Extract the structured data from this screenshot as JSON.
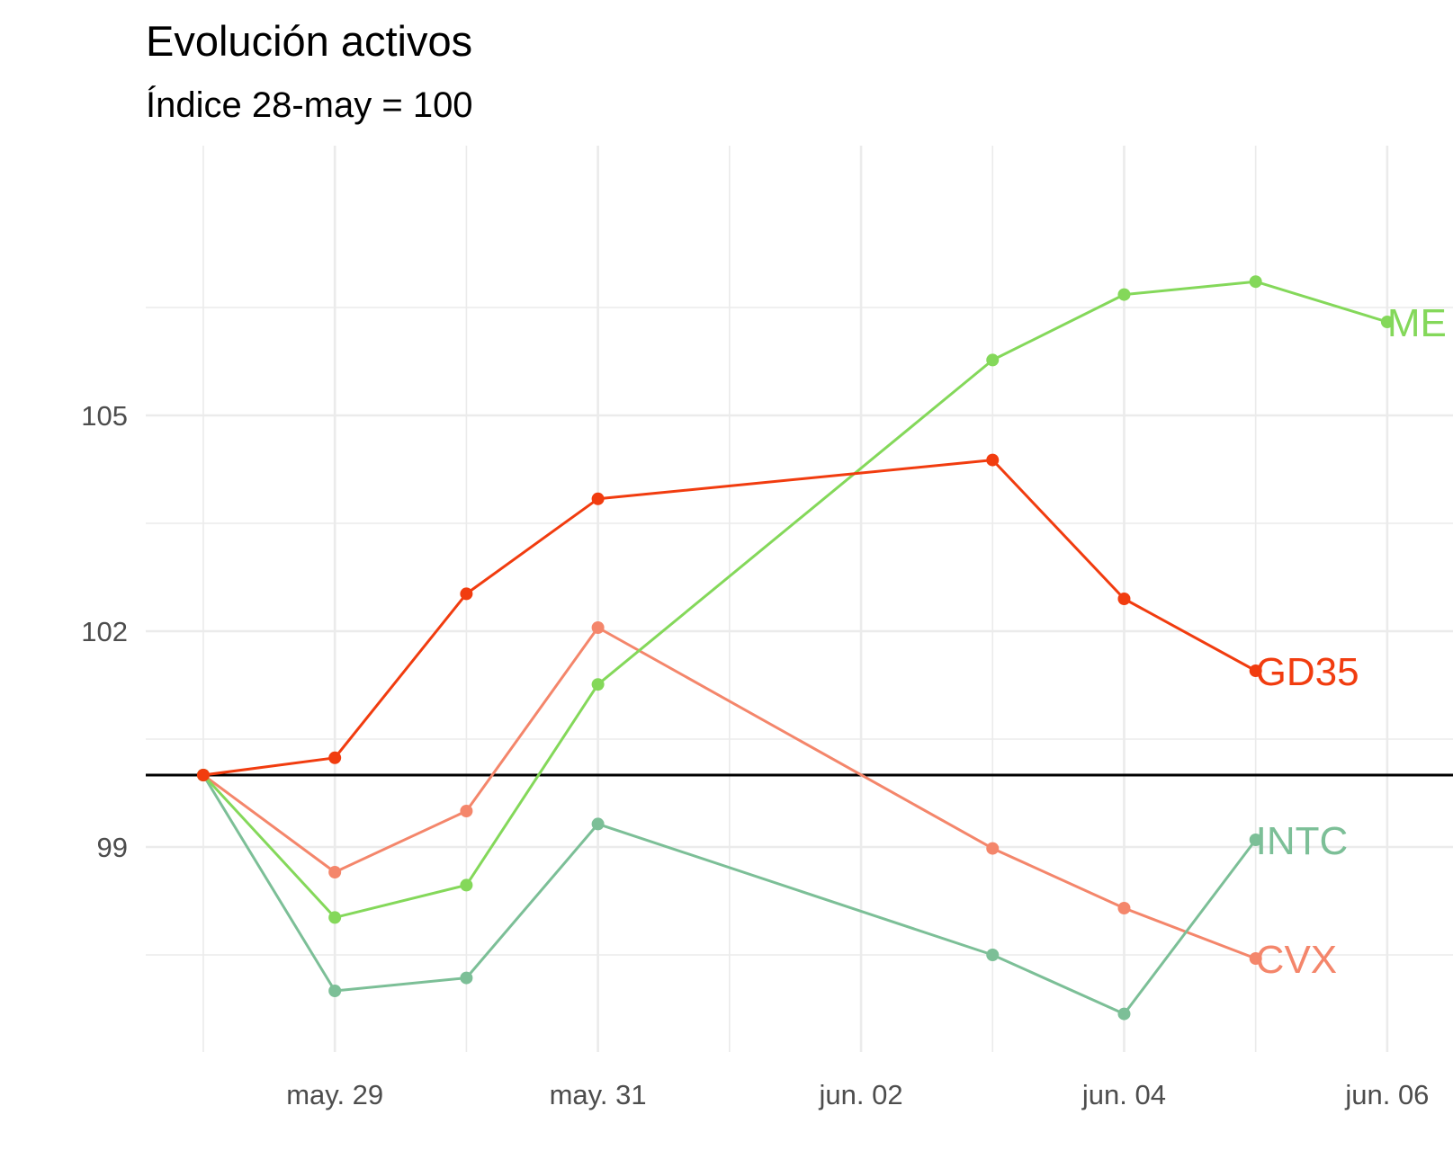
{
  "chart_data": {
    "type": "line",
    "title": "Evolución activos",
    "subtitle": "Índice 28-may = 100",
    "xlabel": "",
    "ylabel": "",
    "x_type": "date",
    "xlim": [
      "2021-05-27T13:30:00",
      "2021-06-06T12:00:00"
    ],
    "ylim": [
      96.15,
      108.75
    ],
    "x_ticks": [
      {
        "date": "2021-05-29",
        "label": "may. 29"
      },
      {
        "date": "2021-05-31",
        "label": "may. 31"
      },
      {
        "date": "2021-06-02",
        "label": "jun. 02"
      },
      {
        "date": "2021-06-04",
        "label": "jun. 04"
      },
      {
        "date": "2021-06-06",
        "label": "jun. 06"
      }
    ],
    "y_ticks": [
      {
        "value": 99,
        "label": "99"
      },
      {
        "value": 102,
        "label": "102"
      },
      {
        "value": 105,
        "label": "105"
      }
    ],
    "y_minor_ticks": [
      97.5,
      100.5,
      103.5,
      106.5
    ],
    "reference_line": 100,
    "grid": true,
    "legend": "none",
    "series": [
      {
        "name": "CVX",
        "color": "#f4866b",
        "points": [
          {
            "x": "2021-05-28",
            "y": 100.0
          },
          {
            "x": "2021-05-29",
            "y": 98.65
          },
          {
            "x": "2021-05-30",
            "y": 99.5
          },
          {
            "x": "2021-05-31",
            "y": 102.05
          },
          {
            "x": "2021-06-03",
            "y": 98.98
          },
          {
            "x": "2021-06-04",
            "y": 98.15
          },
          {
            "x": "2021-06-05",
            "y": 97.45
          }
        ]
      },
      {
        "name": "INTC",
        "color": "#7cbf97",
        "points": [
          {
            "x": "2021-05-28",
            "y": 100.0
          },
          {
            "x": "2021-05-29",
            "y": 97.0
          },
          {
            "x": "2021-05-30",
            "y": 97.18
          },
          {
            "x": "2021-05-31",
            "y": 99.32
          },
          {
            "x": "2021-06-03",
            "y": 97.5
          },
          {
            "x": "2021-06-04",
            "y": 96.68
          },
          {
            "x": "2021-06-05",
            "y": 99.1
          }
        ]
      },
      {
        "name": "ME",
        "color": "#84d85a",
        "points": [
          {
            "x": "2021-05-28",
            "y": 100.0
          },
          {
            "x": "2021-05-29",
            "y": 98.02
          },
          {
            "x": "2021-05-30",
            "y": 98.47
          },
          {
            "x": "2021-05-31",
            "y": 101.26
          },
          {
            "x": "2021-06-03",
            "y": 105.77
          },
          {
            "x": "2021-06-04",
            "y": 106.68
          },
          {
            "x": "2021-06-05",
            "y": 106.86
          },
          {
            "x": "2021-06-06",
            "y": 106.3
          }
        ]
      },
      {
        "name": "GD35",
        "color": "#f13c0f",
        "points": [
          {
            "x": "2021-05-28",
            "y": 100.0
          },
          {
            "x": "2021-05-29",
            "y": 100.24
          },
          {
            "x": "2021-05-30",
            "y": 102.52
          },
          {
            "x": "2021-05-31",
            "y": 103.84
          },
          {
            "x": "2021-06-03",
            "y": 104.38
          },
          {
            "x": "2021-06-04",
            "y": 102.45
          },
          {
            "x": "2021-06-05",
            "y": 101.45
          }
        ]
      }
    ]
  }
}
